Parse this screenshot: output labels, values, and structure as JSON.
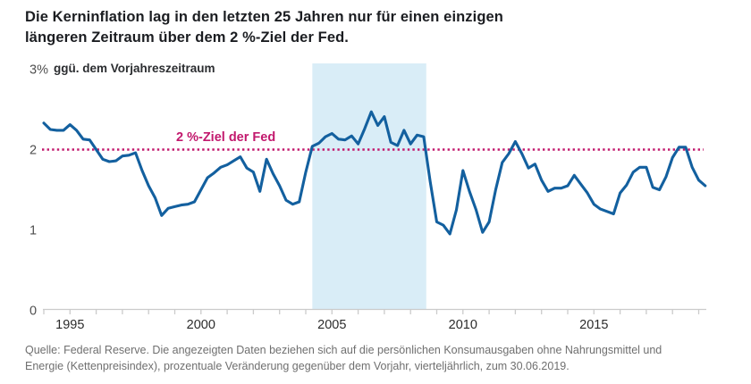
{
  "title": "Die Kerninflation lag in den letzten 25 Jahren nur für einen einzigen längeren Zeitraum über dem 2 %-Ziel der Fed.",
  "unit_label": "ggü. dem Vorjahreszeitraum",
  "source_lines": [
    "Quelle: Federal Reserve. Die angezeigten Daten beziehen sich auf die persönlichen Konsumausgaben ohne Nahrungsmittel und",
    "Energie (Kettenpreisindex), prozentuale Veränderung gegenüber dem Vorjahr, vierteljährlich, zum 30.06.2019."
  ],
  "colors": {
    "line_blue": "#13609F",
    "band_light_blue": "#D9EDF7",
    "target_pink": "#C2186D",
    "axis_gray": "#CBCBCB",
    "x_label_dark": "#2B2B2B",
    "y_label_gray": "#4F4F4F"
  },
  "chart_data": {
    "type": "line",
    "title": "Kerninflation (Kern-PCE) ggü. dem Vorjahreszeitraum, vierteljährlich",
    "x_start": 1994.0,
    "x_step": 0.25,
    "xlim": [
      1994,
      2019.5
    ],
    "ylim": [
      0,
      3.07
    ],
    "grid": false,
    "x_ticks_every_year": true,
    "x_ticks_labeled": [
      1995,
      2000,
      2005,
      2010,
      2015
    ],
    "y_ticks": [
      {
        "value": 0,
        "label": "0"
      },
      {
        "value": 1,
        "label": "1"
      },
      {
        "value": 2,
        "label": "2"
      },
      {
        "value": 3,
        "label": "3%"
      }
    ],
    "reference_line": {
      "value": 2,
      "label": "2 %-Ziel der Fed"
    },
    "highlight_band": {
      "x_start": 2004.25,
      "x_end": 2008.6
    },
    "series": [
      {
        "name": "Kerninflation",
        "values": [
          2.33,
          2.25,
          2.24,
          2.24,
          2.31,
          2.24,
          2.13,
          2.12,
          2.0,
          1.88,
          1.85,
          1.86,
          1.92,
          1.93,
          1.96,
          1.74,
          1.55,
          1.4,
          1.18,
          1.27,
          1.29,
          1.31,
          1.32,
          1.35,
          1.5,
          1.65,
          1.71,
          1.78,
          1.81,
          1.86,
          1.91,
          1.77,
          1.72,
          1.48,
          1.88,
          1.7,
          1.55,
          1.37,
          1.32,
          1.35,
          1.72,
          2.04,
          2.08,
          2.16,
          2.2,
          2.13,
          2.12,
          2.17,
          2.07,
          2.26,
          2.47,
          2.3,
          2.41,
          2.09,
          2.05,
          2.24,
          2.07,
          2.18,
          2.16,
          1.6,
          1.1,
          1.06,
          0.95,
          1.25,
          1.74,
          1.48,
          1.25,
          0.97,
          1.1,
          1.5,
          1.84,
          1.95,
          2.1,
          1.95,
          1.77,
          1.82,
          1.62,
          1.48,
          1.52,
          1.52,
          1.55,
          1.68,
          1.57,
          1.46,
          1.32,
          1.26,
          1.23,
          1.2,
          1.46,
          1.56,
          1.72,
          1.78,
          1.78,
          1.53,
          1.5,
          1.66,
          1.9,
          2.03,
          2.03,
          1.78,
          1.62,
          1.55
        ]
      }
    ]
  }
}
